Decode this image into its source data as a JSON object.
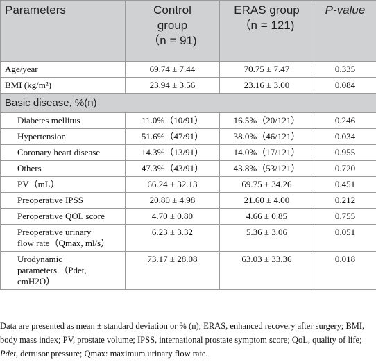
{
  "table": {
    "headers": {
      "parameters": "Parameters",
      "control_line1": "Control",
      "control_line2": "group",
      "control_line3": "（n = 91)",
      "eras_line1": "ERAS group",
      "eras_line2": "（n = 121)",
      "pvalue": "P-value"
    },
    "rows_top": [
      {
        "label": "Age/year",
        "control": "69.74 ± 7.44",
        "eras": "70.75 ± 7.47",
        "p": "0.335"
      },
      {
        "label": "BMI (kg/m²)",
        "control": "23.94 ± 3.56",
        "eras": "23.16 ± 3.00",
        "p": "0.084"
      }
    ],
    "section_label": "Basic disease, %(n)",
    "rows_sub": [
      {
        "label": "Diabetes mellitus",
        "control": "11.0%（10/91）",
        "eras": "16.5%（20/121）",
        "p": "0.246"
      },
      {
        "label": "Hypertension",
        "control": "51.6%（47/91）",
        "eras": "38.0%（46/121）",
        "p": "0.034"
      },
      {
        "label": "Coronary heart disease",
        "control": "14.3%（13/91）",
        "eras": "14.0%（17/121）",
        "p": "0.955"
      },
      {
        "label": "Others",
        "control": "47.3%（43/91）",
        "eras": "43.8%（53/121）",
        "p": "0.720"
      },
      {
        "label": "PV（mL）",
        "control": "66.24 ± 32.13",
        "eras": "69.75 ± 34.26",
        "p": "0.451"
      },
      {
        "label": "Preoperative IPSS",
        "control": "20.80 ± 4.98",
        "eras": "21.60 ± 4.00",
        "p": "0.212"
      },
      {
        "label": "Peroperative QOL score",
        "control": "4.70 ± 0.80",
        "eras": "4.66 ± 0.85",
        "p": "0.755"
      },
      {
        "label_line1": "Preoperative urinary",
        "label_line2": "flow rate（Qmax, ml/s）",
        "control": "6.23 ± 3.32",
        "eras": "5.36 ± 3.06",
        "p": "0.051"
      },
      {
        "label_line1": "Urodynamic",
        "label_line2": "parameters.（Pdet,",
        "label_line3": "cmH2O）",
        "control": "73.17 ± 28.08",
        "eras": "63.03 ± 33.36",
        "p": "0.018"
      }
    ]
  },
  "footnote": {
    "part1": "Data are presented as mean ± standard deviation or % (n); ERAS, enhanced recovery after surgery; BMI, body mass index; PV, prostate volume; IPSS, international prostate symptom score; QoL, quality of life; ",
    "pdet": "Pdet",
    "part2": ", detrusor pressure; Qmax: maximum urinary flow rate."
  }
}
